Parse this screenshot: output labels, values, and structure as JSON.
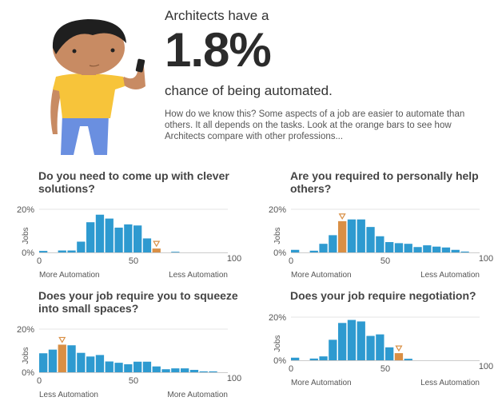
{
  "header": {
    "lead": "Architects have a",
    "percentage": "1.8%",
    "tail": "chance of being automated.",
    "body": "How do we know this? Some aspects of a job are easier to automate than others. It all depends on the tasks. Look at the orange bars to see how Architects compare with other professions..."
  },
  "colors": {
    "bar": "#2e9ad0",
    "highlight": "#d98f45",
    "grid": "#e6e6e6",
    "axis": "#cccccc"
  },
  "chart_data": [
    {
      "type": "bar",
      "title": "Do you need to come up with clever solutions?",
      "ylabel": "Jobs",
      "ytick_labels": [
        "20%",
        "0%"
      ],
      "xtick_labels": [
        "0",
        "50",
        "100"
      ],
      "xlabel_left": "More Automation",
      "xlabel_right": "Less Automation",
      "xlim": [
        0,
        100
      ],
      "ylim": [
        0,
        20
      ],
      "bin_width": 5,
      "bin_starts": [
        0,
        5,
        10,
        15,
        20,
        25,
        30,
        35,
        40,
        45,
        50,
        55,
        60,
        65,
        70,
        75,
        80,
        85,
        90,
        95
      ],
      "values": [
        0.7,
        0,
        0.9,
        0.9,
        5,
        14,
        17.5,
        15.7,
        11.5,
        13,
        12.5,
        6.5,
        1.8,
        0,
        0.3,
        0,
        0,
        0,
        0,
        0
      ],
      "highlight_index": 12
    },
    {
      "type": "bar",
      "title": "Are you required to personally help others?",
      "ylabel": "Jobs",
      "ytick_labels": [
        "20%",
        "0%"
      ],
      "xtick_labels": [
        "0",
        "50",
        "100"
      ],
      "xlabel_left": "More Automation",
      "xlabel_right": "Less Automation",
      "xlim": [
        0,
        100
      ],
      "ylim": [
        0,
        20
      ],
      "bin_width": 5,
      "bin_starts": [
        0,
        5,
        10,
        15,
        20,
        25,
        30,
        35,
        40,
        45,
        50,
        55,
        60,
        65,
        70,
        75,
        80,
        85,
        90,
        95
      ],
      "values": [
        1.2,
        0,
        0.8,
        4,
        8,
        14.5,
        15.3,
        15.3,
        11.8,
        7.5,
        4.8,
        4.3,
        4,
        2.5,
        3.3,
        2.7,
        2.3,
        1.2,
        0.4,
        0
      ],
      "highlight_index": 5
    },
    {
      "type": "bar",
      "title": "Does your job require you to squeeze into small spaces?",
      "ylabel": "Jobs",
      "ytick_labels": [
        "20%",
        "0%"
      ],
      "xtick_labels": [
        "0",
        "50",
        "100"
      ],
      "xlabel_left": "Less Automation",
      "xlabel_right": "More Automation",
      "xlim": [
        0,
        100
      ],
      "ylim": [
        0,
        20
      ],
      "bin_width": 5,
      "bin_starts": [
        0,
        5,
        10,
        15,
        20,
        25,
        30,
        35,
        40,
        45,
        50,
        55,
        60,
        65,
        70,
        75,
        80,
        85,
        90,
        95
      ],
      "values": [
        8.8,
        10.5,
        12.8,
        12.5,
        9,
        7.3,
        8,
        5,
        4.4,
        3.7,
        4.9,
        4.9,
        2.7,
        1.4,
        1.8,
        1.8,
        1.1,
        0.4,
        0.4,
        0
      ],
      "highlight_index": 2
    },
    {
      "type": "bar",
      "title": "Does your job require negotiation?",
      "ylabel": "Jobs",
      "ytick_labels": [
        "20%",
        "0%"
      ],
      "xtick_labels": [
        "0",
        "50",
        "100"
      ],
      "xlabel_left": "More Automation",
      "xlabel_right": "Less Automation",
      "xlim": [
        0,
        100
      ],
      "ylim": [
        0,
        20
      ],
      "bin_width": 5,
      "bin_starts": [
        0,
        5,
        10,
        15,
        20,
        25,
        30,
        35,
        40,
        45,
        50,
        55,
        60,
        65,
        70,
        75,
        80,
        85,
        90,
        95
      ],
      "values": [
        1.2,
        0,
        0.8,
        1.8,
        9.5,
        17.3,
        18.7,
        18,
        11.3,
        12,
        6,
        3.3,
        0.7,
        0,
        0,
        0,
        0,
        0,
        0,
        0
      ],
      "highlight_index": 11
    }
  ]
}
